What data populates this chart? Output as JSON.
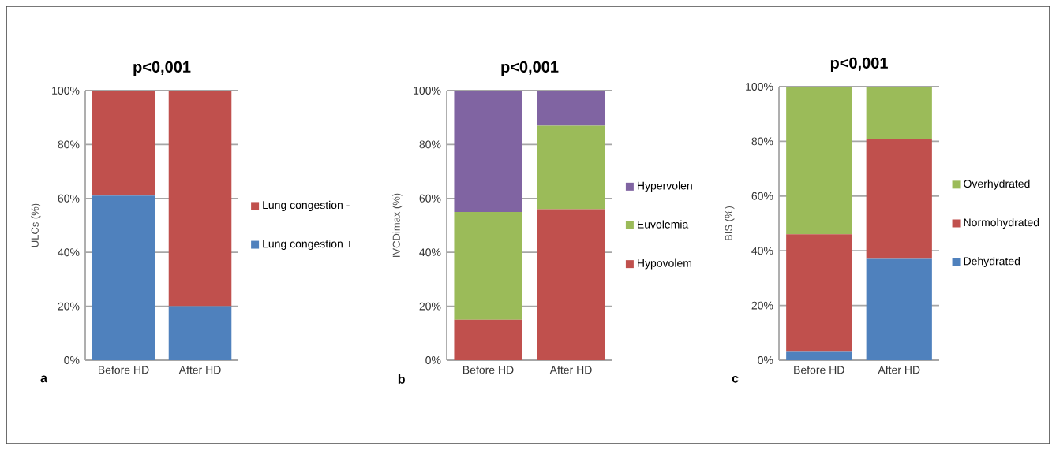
{
  "chart_data": [
    {
      "type": "bar",
      "stacked": true,
      "title": "p<0,001",
      "ylabel": "ULCs (%)",
      "categories": [
        "Before HD",
        "After  HD"
      ],
      "series": [
        {
          "name": "Lung congestion +",
          "color": "#4f81bd",
          "values": [
            61,
            20
          ]
        },
        {
          "name": "Lung congestion -",
          "color": "#c0504d",
          "values": [
            39,
            80
          ]
        }
      ],
      "ylim": [
        0,
        100
      ],
      "yticks": [
        {
          "value": 0,
          "label": "0%"
        },
        {
          "value": 20,
          "label": "20%"
        },
        {
          "value": 40,
          "label": "40%"
        },
        {
          "value": 60,
          "label": "60%"
        },
        {
          "value": 80,
          "label": "80%"
        },
        {
          "value": 100,
          "label": "100%"
        }
      ],
      "grid": "y",
      "legend": "right",
      "annotations": [
        "a"
      ]
    },
    {
      "type": "bar",
      "stacked": true,
      "title": "p<0,001",
      "ylabel": "IVCDimax (%)",
      "categories": [
        "Before HD",
        "After  HD"
      ],
      "series": [
        {
          "name": "Hypovolem",
          "color": "#c0504d",
          "values": [
            15,
            56
          ]
        },
        {
          "name": "Euvolemia",
          "color": "#9bbb59",
          "values": [
            40,
            31
          ]
        },
        {
          "name": "Hypervolen",
          "color": "#8064a2",
          "values": [
            45,
            13
          ]
        }
      ],
      "ylim": [
        0,
        100
      ],
      "yticks": [
        {
          "value": 0,
          "label": "0%"
        },
        {
          "value": 20,
          "label": "20%"
        },
        {
          "value": 40,
          "label": "40%"
        },
        {
          "value": 60,
          "label": "60%"
        },
        {
          "value": 80,
          "label": "80%"
        },
        {
          "value": 100,
          "label": "100%"
        }
      ],
      "grid": "y",
      "legend": "right",
      "annotations": [
        "b"
      ]
    },
    {
      "type": "bar",
      "stacked": true,
      "title": "p<0,001",
      "ylabel": "BIS (%)",
      "categories": [
        "Before HD",
        "After  HD"
      ],
      "series": [
        {
          "name": "Dehydrated",
          "color": "#4f81bd",
          "values": [
            3,
            37
          ]
        },
        {
          "name": "Normohydrated",
          "color": "#c0504d",
          "values": [
            43,
            44
          ]
        },
        {
          "name": "Overhydrated",
          "color": "#9bbb59",
          "values": [
            54,
            19
          ]
        }
      ],
      "ylim": [
        0,
        100
      ],
      "yticks": [
        {
          "value": 0,
          "label": "0%"
        },
        {
          "value": 20,
          "label": "20%"
        },
        {
          "value": 40,
          "label": "40%"
        },
        {
          "value": 60,
          "label": "60%"
        },
        {
          "value": 80,
          "label": "80%"
        },
        {
          "value": 100,
          "label": "100%"
        }
      ],
      "grid": "y",
      "legend": "right",
      "annotations": [
        "c"
      ]
    }
  ]
}
